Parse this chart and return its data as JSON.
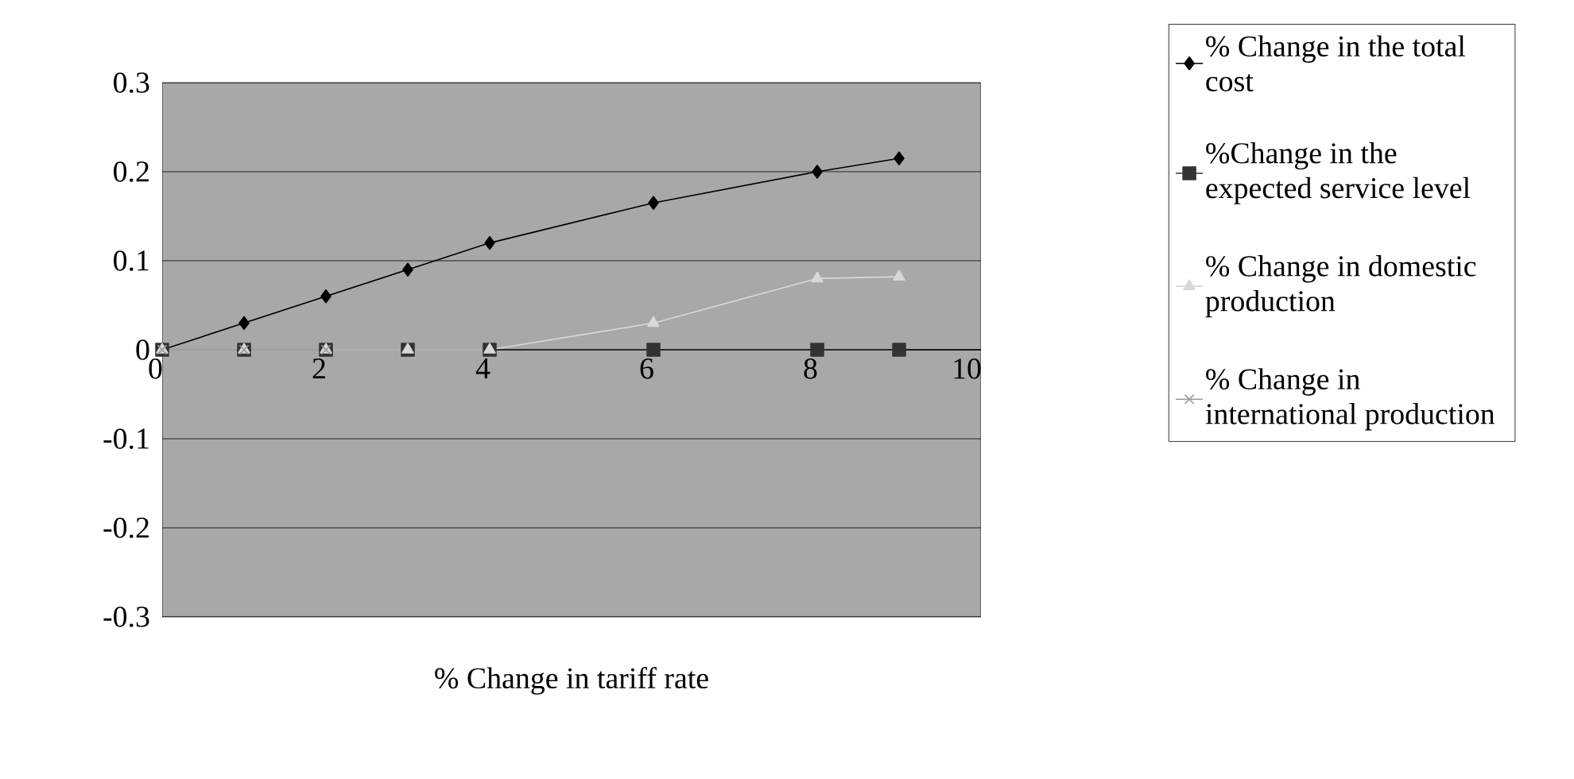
{
  "chart_data": {
    "type": "line",
    "xlabel": "% Change in tariff rate",
    "xlim": [
      0,
      10
    ],
    "xticks": [
      0,
      2,
      4,
      6,
      8,
      10
    ],
    "ylim": [
      -0.3,
      0.3
    ],
    "yticks": [
      -0.3,
      -0.2,
      -0.1,
      0,
      0.1,
      0.2,
      0.3
    ],
    "grid": "y",
    "legend": "right",
    "series": [
      {
        "name": "% Change in the total cost",
        "color": "#000000",
        "marker": "diamond",
        "x": [
          0,
          1,
          2,
          3,
          4,
          6,
          8,
          9
        ],
        "values": [
          0,
          0.03,
          0.06,
          0.09,
          0.12,
          0.165,
          0.2,
          0.215
        ]
      },
      {
        "name": "%Change in the expected service level",
        "color": "#333333",
        "marker": "square",
        "x": [
          0,
          1,
          2,
          3,
          4,
          6,
          8,
          9
        ],
        "values": [
          0,
          0,
          0,
          0,
          0,
          0,
          0,
          0
        ]
      },
      {
        "name": "% Change in  domestic production",
        "color": "#d8d8d8",
        "marker": "triangle",
        "x": [
          0,
          1,
          2,
          3,
          4,
          6,
          8,
          9
        ],
        "values": [
          0,
          0,
          0,
          0,
          0,
          0.03,
          0.08,
          0.082
        ]
      },
      {
        "name": "% Change in international production",
        "color": "#9a9a9a",
        "marker": "cross",
        "x": [
          0,
          1,
          2
        ],
        "values": [
          0,
          0,
          0
        ]
      }
    ]
  }
}
